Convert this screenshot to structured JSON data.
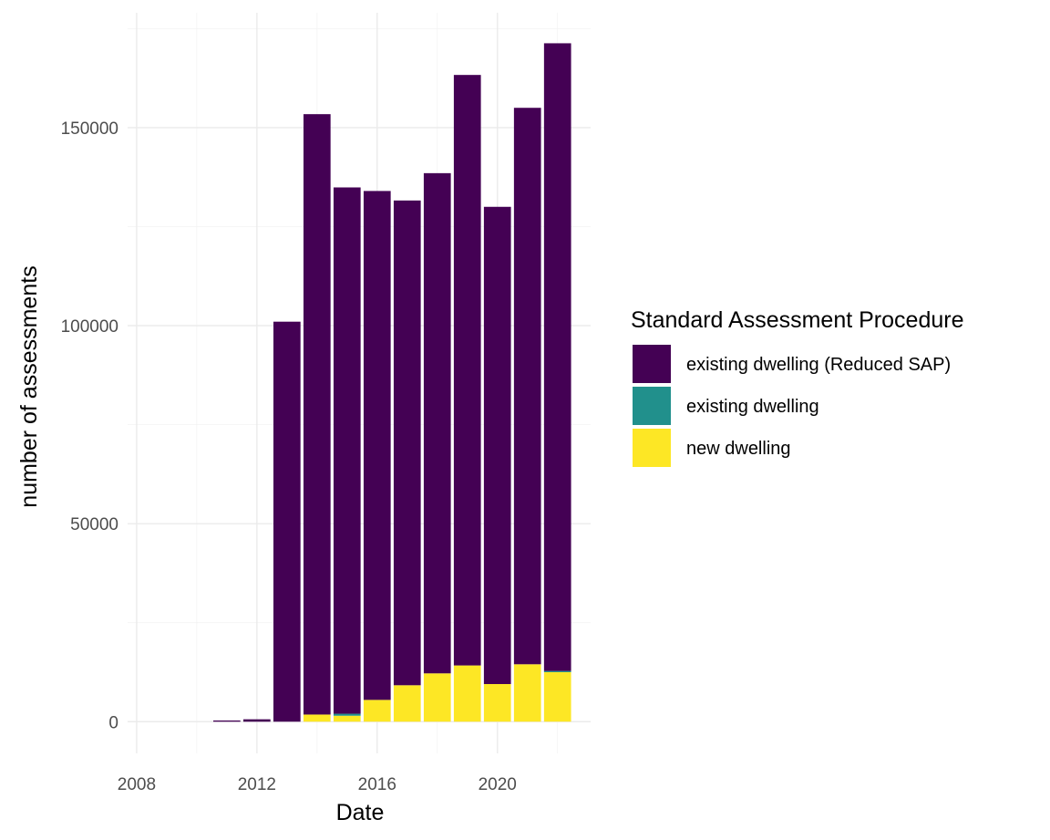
{
  "chart_data": {
    "type": "bar",
    "stacked": true,
    "title": "",
    "xlabel": "Date",
    "ylabel": "number of assessments",
    "x": [
      2011,
      2012,
      2013,
      2014,
      2015,
      2016,
      2017,
      2018,
      2019,
      2020,
      2021,
      2022
    ],
    "xlim": [
      2007.7,
      2023.1
    ],
    "ylim": [
      -8000,
      179000
    ],
    "x_ticks": [
      2008,
      2012,
      2016,
      2020
    ],
    "y_ticks": [
      0,
      50000,
      100000,
      150000
    ],
    "grid": true,
    "legend": {
      "title": "Standard Assessment Procedure",
      "position": "right"
    },
    "series": [
      {
        "name": "new dwelling",
        "color": "#FDE725",
        "values": [
          0,
          0,
          0,
          1800,
          1500,
          5500,
          9200,
          12200,
          14200,
          9500,
          14500,
          12500
        ]
      },
      {
        "name": "existing dwelling",
        "color": "#21908C",
        "values": [
          0,
          0,
          0,
          0,
          500,
          0,
          0,
          0,
          0,
          0,
          0,
          300
        ]
      },
      {
        "name": "existing dwelling (Reduced SAP)",
        "color": "#440154",
        "values": [
          300,
          600,
          101000,
          151600,
          132900,
          128500,
          122400,
          126300,
          149100,
          120500,
          140500,
          158500
        ]
      }
    ],
    "legend_order": [
      "existing dwelling (Reduced SAP)",
      "existing dwelling",
      "new dwelling"
    ]
  }
}
